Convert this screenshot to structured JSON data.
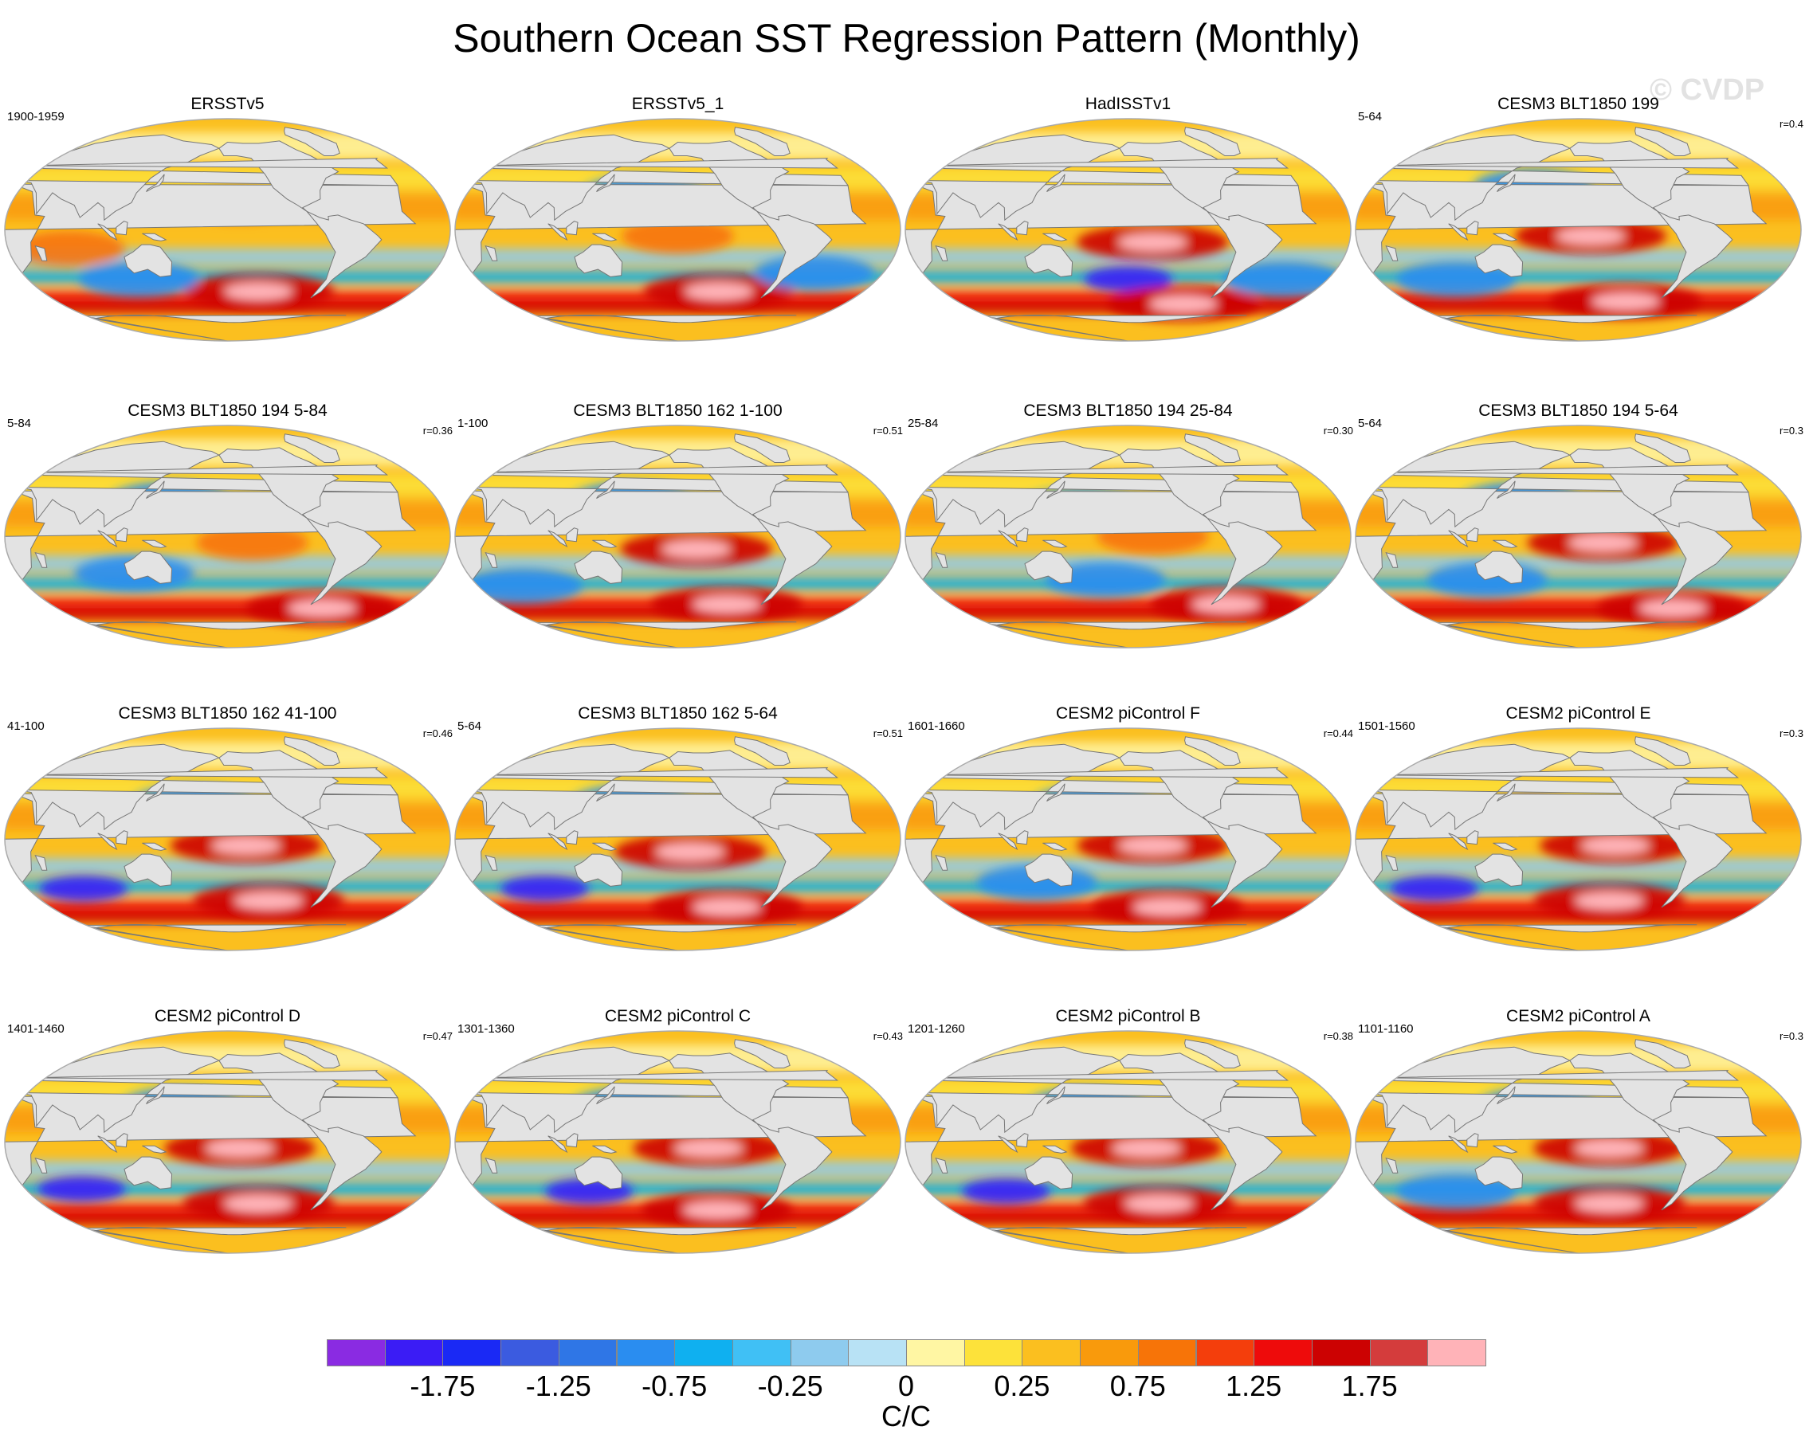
{
  "figure": {
    "title": "Southern Ocean SST Regression Pattern (Monthly)",
    "watermark": "© CVDP"
  },
  "chart_data": {
    "type": "heatmap",
    "title": "Southern Ocean SST Regression Pattern (Monthly)",
    "projection": "global map panels",
    "units": "C/C",
    "panels": [
      {
        "name": "ERSSTv5",
        "period": "1900-1959",
        "r": "",
        "features": [
          {
            "type": "warm_high",
            "lon": 230,
            "lat": -50
          },
          {
            "type": "warm",
            "lon": 210,
            "lat": 20
          },
          {
            "type": "warm",
            "lon": 70,
            "lat": -15
          },
          {
            "type": "cool",
            "lon": 120,
            "lat": -40
          }
        ]
      },
      {
        "name": "ERSSTv5_1",
        "period": "",
        "r": "",
        "features": [
          {
            "type": "warm_high",
            "lon": 240,
            "lat": -50
          },
          {
            "type": "warm",
            "lon": 200,
            "lat": -5
          },
          {
            "type": "cool",
            "lon": 170,
            "lat": 30
          },
          {
            "type": "cool",
            "lon": 320,
            "lat": -35
          }
        ]
      },
      {
        "name": "HadISSTv1",
        "period": "",
        "r": "",
        "features": [
          {
            "type": "warm_high",
            "lon": 220,
            "lat": -10
          },
          {
            "type": "cold_high",
            "lon": 200,
            "lat": -40
          },
          {
            "type": "warm_high",
            "lon": 260,
            "lat": -60
          },
          {
            "type": "cool",
            "lon": 340,
            "lat": -40
          }
        ]
      },
      {
        "name": "CESM3 BLT1850 199",
        "period": "5-64",
        "r": "r=0.4",
        "features": [
          {
            "type": "warm_high",
            "lon": 210,
            "lat": -5
          },
          {
            "type": "warm_high",
            "lon": 250,
            "lat": -58
          },
          {
            "type": "cool",
            "lon": 160,
            "lat": 35
          },
          {
            "type": "cool",
            "lon": 90,
            "lat": -40
          }
        ]
      },
      {
        "name": "CESM3 BLT1850 194 5-84",
        "period": "5-84",
        "r": "r=0.36",
        "features": [
          {
            "type": "warm",
            "lon": 220,
            "lat": -5
          },
          {
            "type": "warm_high",
            "lon": 300,
            "lat": -58
          },
          {
            "type": "cool",
            "lon": 150,
            "lat": 30
          },
          {
            "type": "cool",
            "lon": 120,
            "lat": -30
          }
        ]
      },
      {
        "name": "CESM3 BLT1850 162 1-100",
        "period": "1-100",
        "r": "r=0.51",
        "features": [
          {
            "type": "warm_high",
            "lon": 215,
            "lat": -10
          },
          {
            "type": "warm_high",
            "lon": 250,
            "lat": -55
          },
          {
            "type": "cool",
            "lon": 160,
            "lat": 30
          },
          {
            "type": "cool",
            "lon": 60,
            "lat": -40
          }
        ]
      },
      {
        "name": "CESM3 BLT1850 194 25-84",
        "period": "25-84",
        "r": "r=0.30",
        "features": [
          {
            "type": "warm",
            "lon": 220,
            "lat": 0
          },
          {
            "type": "warm_high",
            "lon": 300,
            "lat": -55
          },
          {
            "type": "cool",
            "lon": 160,
            "lat": 25
          },
          {
            "type": "cool",
            "lon": 180,
            "lat": -35
          }
        ]
      },
      {
        "name": "CESM3 BLT1850 194 5-64",
        "period": "5-64",
        "r": "r=0.3",
        "features": [
          {
            "type": "warm_high",
            "lon": 220,
            "lat": -5
          },
          {
            "type": "warm_high",
            "lon": 300,
            "lat": -58
          },
          {
            "type": "cool",
            "lon": 150,
            "lat": 30
          },
          {
            "type": "cool",
            "lon": 120,
            "lat": -35
          }
        ]
      },
      {
        "name": "CESM3 BLT1850 162 41-100",
        "period": "41-100",
        "r": "r=0.46",
        "features": [
          {
            "type": "warm_high",
            "lon": 215,
            "lat": -5
          },
          {
            "type": "warm_high",
            "lon": 240,
            "lat": -50
          },
          {
            "type": "cold_high",
            "lon": 70,
            "lat": -40
          },
          {
            "type": "cool",
            "lon": 170,
            "lat": 30
          }
        ]
      },
      {
        "name": "CESM3 BLT1850 162 5-64",
        "period": "5-64",
        "r": "r=0.51",
        "features": [
          {
            "type": "warm_high",
            "lon": 210,
            "lat": -10
          },
          {
            "type": "warm_high",
            "lon": 250,
            "lat": -55
          },
          {
            "type": "cool",
            "lon": 160,
            "lat": 30
          },
          {
            "type": "cold_high",
            "lon": 80,
            "lat": -40
          }
        ]
      },
      {
        "name": "CESM2 piControl F",
        "period": "1601-1660",
        "r": "r=0.44",
        "features": [
          {
            "type": "warm_high",
            "lon": 220,
            "lat": -5
          },
          {
            "type": "warm_high",
            "lon": 240,
            "lat": -55
          },
          {
            "type": "cool",
            "lon": 170,
            "lat": 30
          },
          {
            "type": "cool",
            "lon": 120,
            "lat": -35
          }
        ]
      },
      {
        "name": "CESM2 piControl E",
        "period": "1501-1560",
        "r": "r=0.3",
        "features": [
          {
            "type": "warm_high",
            "lon": 230,
            "lat": -5
          },
          {
            "type": "warm_high",
            "lon": 230,
            "lat": -50
          },
          {
            "type": "cold_high",
            "lon": 160,
            "lat": 25
          },
          {
            "type": "cold_high",
            "lon": 70,
            "lat": -40
          }
        ]
      },
      {
        "name": "CESM2 piControl D",
        "period": "1401-1460",
        "r": "r=0.47",
        "features": [
          {
            "type": "warm_high",
            "lon": 210,
            "lat": -5
          },
          {
            "type": "warm_high",
            "lon": 230,
            "lat": -50
          },
          {
            "type": "cool",
            "lon": 160,
            "lat": 30
          },
          {
            "type": "cold_high",
            "lon": 70,
            "lat": -38
          }
        ]
      },
      {
        "name": "CESM2 piControl C",
        "period": "1301-1360",
        "r": "r=0.43",
        "features": [
          {
            "type": "warm_high",
            "lon": 225,
            "lat": -5
          },
          {
            "type": "warm_high",
            "lon": 240,
            "lat": -55
          },
          {
            "type": "cool",
            "lon": 160,
            "lat": 30
          },
          {
            "type": "cold_high",
            "lon": 120,
            "lat": -40
          }
        ]
      },
      {
        "name": "CESM2 piControl B",
        "period": "1201-1260",
        "r": "r=0.38",
        "features": [
          {
            "type": "warm_high",
            "lon": 215,
            "lat": -5
          },
          {
            "type": "warm_high",
            "lon": 230,
            "lat": -50
          },
          {
            "type": "cool",
            "lon": 165,
            "lat": 30
          },
          {
            "type": "cold_high",
            "lon": 90,
            "lat": -40
          }
        ]
      },
      {
        "name": "CESM2 piControl A",
        "period": "1101-1160",
        "r": "r=0.3",
        "features": [
          {
            "type": "warm_high",
            "lon": 225,
            "lat": -5
          },
          {
            "type": "warm_high",
            "lon": 230,
            "lat": -50
          },
          {
            "type": "cool",
            "lon": 165,
            "lat": 30
          },
          {
            "type": "cool",
            "lon": 90,
            "lat": -40
          }
        ]
      }
    ],
    "colorbar": {
      "colors": [
        "#8a2be2",
        "#3b1cf5",
        "#1a29f5",
        "#3b5be0",
        "#2f76e6",
        "#2a8df0",
        "#0fb0f0",
        "#40c0f5",
        "#8ecbee",
        "#b8e2f5",
        "#fff6a3",
        "#fde23a",
        "#fbbf1f",
        "#f99a0c",
        "#f77408",
        "#f43e0c",
        "#ee0b0b",
        "#cc0202",
        "#d43c3c",
        "#ffb3b8"
      ],
      "labels": [
        "-1.75",
        "-1.25",
        "-0.75",
        "-0.25",
        "0",
        "0.25",
        "0.75",
        "1.25",
        "1.75"
      ],
      "units": "C/C"
    },
    "colors": {
      "land": "#e3e3e3",
      "coast": "#777777",
      "frame": "#aaaaaa",
      "sea_ice": "#fff6a3"
    }
  }
}
